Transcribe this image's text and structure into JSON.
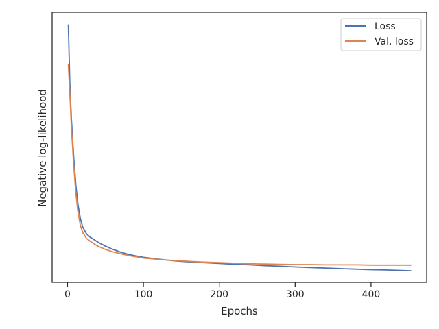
{
  "chart_data": {
    "type": "line",
    "title": "",
    "xlabel": "Epochs",
    "ylabel": "Negative log-likelihood",
    "xlim": [
      -20.3,
      473.3
    ],
    "ylim": [
      0,
      1
    ],
    "y_scale_note": "y tick labels not printed; values normalized 0-1",
    "x_ticks": [
      0,
      100,
      200,
      300,
      400
    ],
    "x_tick_labels": [
      "0",
      "100",
      "200",
      "300",
      "400"
    ],
    "grid": false,
    "legend_position": "top-right",
    "series": [
      {
        "name": "Loss",
        "color": "#4c72b0",
        "x": [
          1,
          3,
          5,
          8,
          11,
          14,
          17,
          20,
          25,
          30,
          35,
          40,
          50,
          60,
          70,
          80,
          90,
          100,
          120,
          140,
          160,
          180,
          200,
          220,
          240,
          260,
          280,
          300,
          320,
          340,
          360,
          380,
          400,
          420,
          440,
          453
        ],
        "y": [
          0.955,
          0.74,
          0.61,
          0.47,
          0.36,
          0.285,
          0.235,
          0.205,
          0.18,
          0.167,
          0.158,
          0.149,
          0.134,
          0.122,
          0.112,
          0.104,
          0.098,
          0.093,
          0.086,
          0.08,
          0.076,
          0.073,
          0.07,
          0.067,
          0.065,
          0.062,
          0.06,
          0.057,
          0.055,
          0.053,
          0.051,
          0.049,
          0.047,
          0.046,
          0.044,
          0.043
        ]
      },
      {
        "name": "Val. loss",
        "color": "#dd8452",
        "x": [
          1,
          3,
          5,
          8,
          11,
          14,
          17,
          20,
          25,
          30,
          35,
          40,
          50,
          60,
          70,
          80,
          90,
          100,
          120,
          140,
          160,
          180,
          200,
          220,
          240,
          260,
          280,
          300,
          320,
          340,
          360,
          380,
          400,
          420,
          440,
          453
        ],
        "y": [
          0.81,
          0.7,
          0.58,
          0.44,
          0.33,
          0.255,
          0.21,
          0.185,
          0.163,
          0.152,
          0.143,
          0.134,
          0.122,
          0.113,
          0.106,
          0.1,
          0.095,
          0.09,
          0.085,
          0.081,
          0.078,
          0.075,
          0.073,
          0.071,
          0.069,
          0.068,
          0.067,
          0.066,
          0.066,
          0.065,
          0.065,
          0.065,
          0.064,
          0.064,
          0.064,
          0.064
        ]
      }
    ]
  }
}
